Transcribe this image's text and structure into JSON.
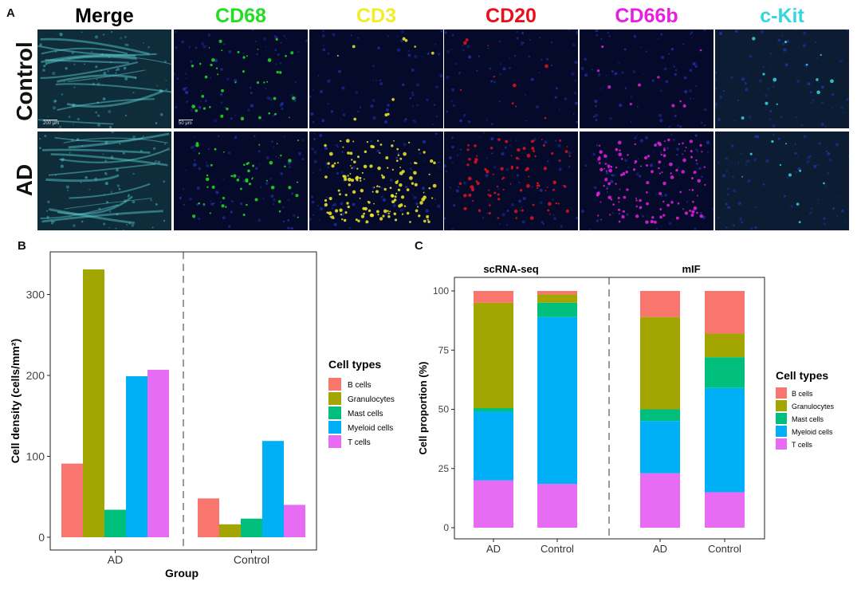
{
  "panel_labels": {
    "a": "A",
    "b": "B",
    "c": "C"
  },
  "panel_a": {
    "markers": [
      {
        "name": "Merge",
        "color": "#000000"
      },
      {
        "name": "CD68",
        "color": "#22dd22"
      },
      {
        "name": "CD3",
        "color": "#f2ec2a"
      },
      {
        "name": "CD20",
        "color": "#e8101c"
      },
      {
        "name": "CD66b",
        "color": "#e81ee0"
      },
      {
        "name": "c-Kit",
        "color": "#35d6e0"
      }
    ],
    "rows": [
      "Control",
      "AD"
    ],
    "scale_bars": [
      "200 μm",
      "50 μm"
    ]
  },
  "chart_data": [
    {
      "type": "bar",
      "panel": "B",
      "categories": [
        "AD",
        "Control"
      ],
      "series": [
        {
          "name": "B cells",
          "color": "#f8766d",
          "values": [
            91,
            48
          ]
        },
        {
          "name": "Granulocytes",
          "color": "#a3a500",
          "values": [
            331,
            16
          ]
        },
        {
          "name": "Mast cells",
          "color": "#00bf7d",
          "values": [
            34,
            23
          ]
        },
        {
          "name": "Myeloid cells",
          "color": "#00b0f6",
          "values": [
            199,
            119
          ]
        },
        {
          "name": "T cells",
          "color": "#e76bf3",
          "values": [
            207,
            40
          ]
        }
      ],
      "xlabel": "Group",
      "ylabel": "Cell density (cells/mm²)",
      "yticks": [
        0,
        100,
        200,
        300
      ],
      "ylim": [
        0,
        350
      ],
      "legend_title": "Cell types",
      "legend_position": "right",
      "grid": false
    },
    {
      "type": "bar",
      "stacked": true,
      "panel": "C",
      "facets": [
        "scRNA-seq",
        "mIF"
      ],
      "categories": [
        "AD",
        "Control",
        "AD",
        "Control"
      ],
      "series": [
        {
          "name": "B cells",
          "color": "#f8766d",
          "values": [
            5,
            1.5,
            11,
            18
          ]
        },
        {
          "name": "Granulocytes",
          "color": "#a3a500",
          "values": [
            44.5,
            3.5,
            39,
            10
          ]
        },
        {
          "name": "Mast cells",
          "color": "#00bf7d",
          "values": [
            1.5,
            6,
            5,
            13
          ]
        },
        {
          "name": "Myeloid cells",
          "color": "#00b0f6",
          "values": [
            29,
            70.5,
            22,
            44
          ]
        },
        {
          "name": "T cells",
          "color": "#e76bf3",
          "values": [
            20,
            18.5,
            23,
            15
          ]
        }
      ],
      "ylabel": "Cell proportion (%)",
      "yticks": [
        0,
        25,
        50,
        75,
        100
      ],
      "ylim": [
        0,
        100
      ],
      "legend_title": "Cell types",
      "legend_position": "right",
      "grid": false
    }
  ]
}
